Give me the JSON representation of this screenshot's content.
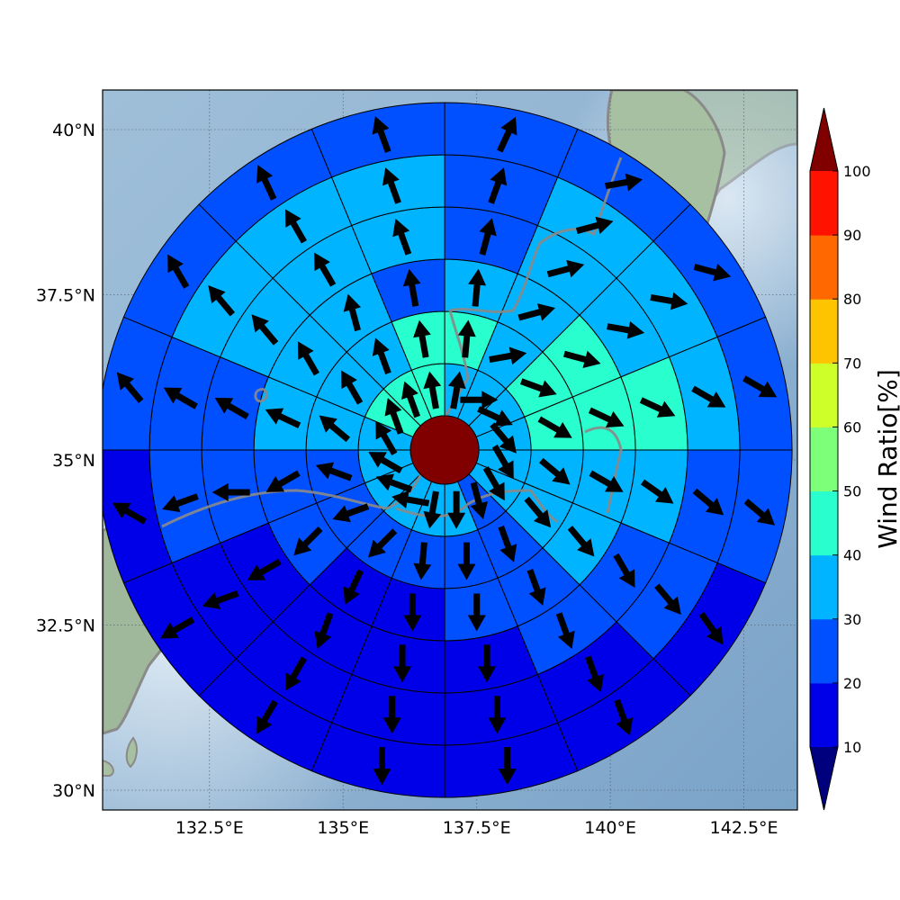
{
  "chart_data": {
    "type": "polar-sector-map",
    "xlabel": "",
    "ylabel": "",
    "lon_range": [
      130.5,
      143.5
    ],
    "lat_range": [
      29.7,
      40.6
    ],
    "lon_ticks": [
      "132.5°E",
      "135°E",
      "137.5°E",
      "140°E",
      "142.5°E"
    ],
    "lon_tick_values": [
      132.5,
      135.0,
      137.5,
      140.0,
      142.5
    ],
    "lat_ticks": [
      "40°N",
      "37.5°N",
      "35°N",
      "32.5°N",
      "30°N"
    ],
    "lat_tick_values": [
      40.0,
      37.5,
      35.0,
      32.5,
      30.0
    ],
    "grid": true,
    "center": {
      "lon": 136.9,
      "lat": 35.15,
      "ratio_percent": 100
    },
    "rings": 6,
    "sectors_per_ring": 16,
    "sector_start": "north, clockwise",
    "wind_ratio_percent": [
      [
        35,
        35,
        35,
        35,
        35,
        35,
        25,
        35,
        35,
        35,
        35,
        35,
        35,
        45,
        45,
        45
      ],
      [
        45,
        35,
        45,
        45,
        35,
        35,
        25,
        25,
        25,
        25,
        25,
        25,
        35,
        35,
        35,
        45
      ],
      [
        35,
        35,
        45,
        45,
        35,
        35,
        25,
        25,
        15,
        15,
        25,
        25,
        35,
        35,
        35,
        25
      ],
      [
        25,
        35,
        35,
        45,
        35,
        25,
        25,
        15,
        15,
        15,
        15,
        25,
        25,
        35,
        35,
        35
      ],
      [
        25,
        35,
        35,
        35,
        25,
        25,
        15,
        15,
        15,
        15,
        15,
        25,
        25,
        35,
        35,
        35
      ],
      [
        25,
        25,
        25,
        25,
        25,
        15,
        15,
        15,
        15,
        15,
        15,
        15,
        25,
        25,
        25,
        25
      ]
    ],
    "wind_direction_deg": [
      [
        10,
        90,
        115,
        140,
        150,
        150,
        165,
        180,
        190,
        280,
        290,
        300,
        330,
        340,
        340,
        350
      ],
      [
        5,
        80,
        110,
        120,
        130,
        140,
        160,
        180,
        185,
        225,
        250,
        290,
        310,
        330,
        340,
        350
      ],
      [
        5,
        75,
        105,
        115,
        120,
        140,
        160,
        180,
        180,
        205,
        225,
        240,
        295,
        330,
        345,
        350
      ],
      [
        15,
        75,
        100,
        115,
        125,
        150,
        160,
        180,
        180,
        200,
        240,
        270,
        300,
        320,
        330,
        340
      ],
      [
        20,
        75,
        100,
        120,
        130,
        140,
        160,
        180,
        180,
        210,
        250,
        250,
        300,
        320,
        330,
        340
      ],
      [
        25,
        80,
        105,
        120,
        130,
        145,
        160,
        180,
        180,
        210,
        240,
        300,
        320,
        330,
        335,
        340
      ]
    ],
    "colorbar": {
      "label": "Wind Ratio[%]",
      "ticks": [
        "10",
        "20",
        "30",
        "40",
        "50",
        "60",
        "70",
        "80",
        "90",
        "100"
      ],
      "bins": [
        {
          "min": 0,
          "max": 10,
          "color": "#00007f"
        },
        {
          "min": 10,
          "max": 20,
          "color": "#0000e8"
        },
        {
          "min": 20,
          "max": 30,
          "color": "#0050ff"
        },
        {
          "min": 30,
          "max": 40,
          "color": "#00b4ff"
        },
        {
          "min": 40,
          "max": 50,
          "color": "#29ffce"
        },
        {
          "min": 50,
          "max": 60,
          "color": "#7dff7a"
        },
        {
          "min": 60,
          "max": 70,
          "color": "#ceff29"
        },
        {
          "min": 70,
          "max": 80,
          "color": "#ffc400"
        },
        {
          "min": 80,
          "max": 90,
          "color": "#ff6800"
        },
        {
          "min": 90,
          "max": 100,
          "color": "#ff1300"
        },
        {
          "min": 100,
          "max": 110,
          "color": "#800000"
        }
      ]
    }
  }
}
